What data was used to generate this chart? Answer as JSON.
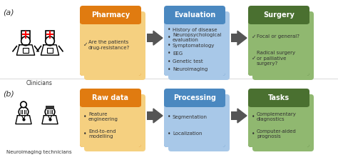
{
  "bg_color": "#ffffff",
  "row_a": {
    "label": "(a)",
    "person_label": "Clinicians",
    "boxes": [
      {
        "title": "Pharmacy",
        "title_color": "#ffffff",
        "bg_dark": "#e07b10",
        "bg_light": "#f5d080",
        "bullet_char": "✓",
        "bullets": [
          "Are the patients\ndrug-resistance?"
        ]
      },
      {
        "title": "Evaluation",
        "title_color": "#ffffff",
        "bg_dark": "#4a88c0",
        "bg_light": "#a8c8e8",
        "bullet_char": "•",
        "bullets": [
          "History of disease",
          "Neuropsychological\nevaluation",
          "Symptomatology",
          "EEG",
          "Genetic test",
          "Neuroimaging"
        ]
      },
      {
        "title": "Surgery",
        "title_color": "#ffffff",
        "bg_dark": "#4a7030",
        "bg_light": "#90b870",
        "bullet_char": "✓",
        "bullets": [
          "Focal or general?",
          "Radical surgery\nor palliative\nsurgery?"
        ]
      }
    ]
  },
  "row_b": {
    "label": "(b)",
    "person_label": "Neuroimaging technicians",
    "boxes": [
      {
        "title": "Raw data",
        "title_color": "#ffffff",
        "bg_dark": "#e07b10",
        "bg_light": "#f5d080",
        "bullet_char": "•",
        "bullets": [
          "Feature\nengineering",
          "End-to-end\nmodelling"
        ]
      },
      {
        "title": "Processing",
        "title_color": "#ffffff",
        "bg_dark": "#4a88c0",
        "bg_light": "#a8c8e8",
        "bullet_char": "•",
        "bullets": [
          "Segmentation",
          "Localization"
        ]
      },
      {
        "title": "Tasks",
        "title_color": "#ffffff",
        "bg_dark": "#4a7030",
        "bg_light": "#90b870",
        "bullet_char": "•",
        "bullets": [
          "Complementary\ndiagnostics",
          "Computer-aided\nprognosis"
        ]
      }
    ]
  },
  "arrow_color": "#555555",
  "text_color": "#333333",
  "divider_color": "#dddddd"
}
